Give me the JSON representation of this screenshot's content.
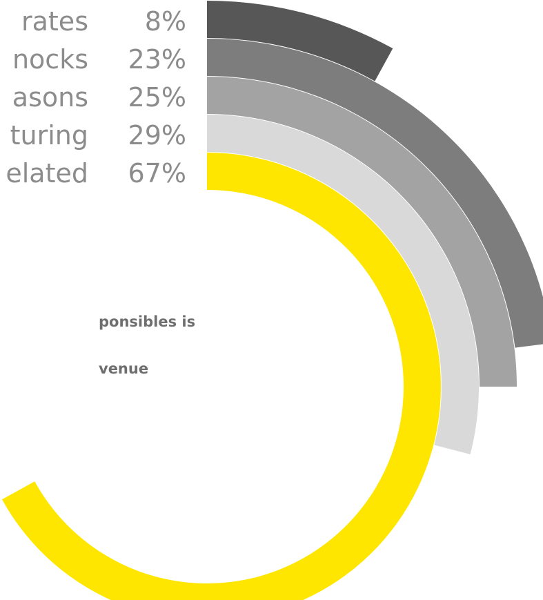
{
  "chart_data": {
    "type": "radial-bar",
    "unit": "%",
    "series": [
      {
        "label": "rates",
        "value": 8,
        "color": "#575757"
      },
      {
        "label": "nocks",
        "value": 23,
        "color": "#7d7d7d"
      },
      {
        "label": "asons",
        "value": 25,
        "color": "#a3a3a3"
      },
      {
        "label": "turing",
        "value": 29,
        "color": "#d9d9d9"
      },
      {
        "label": "elated",
        "value": 67,
        "color": "#ffe600"
      }
    ],
    "value_labels": [
      "8%",
      "23%",
      "25%",
      "29%",
      "67%"
    ],
    "annotation": [
      "ponsibles is",
      "venue"
    ]
  }
}
